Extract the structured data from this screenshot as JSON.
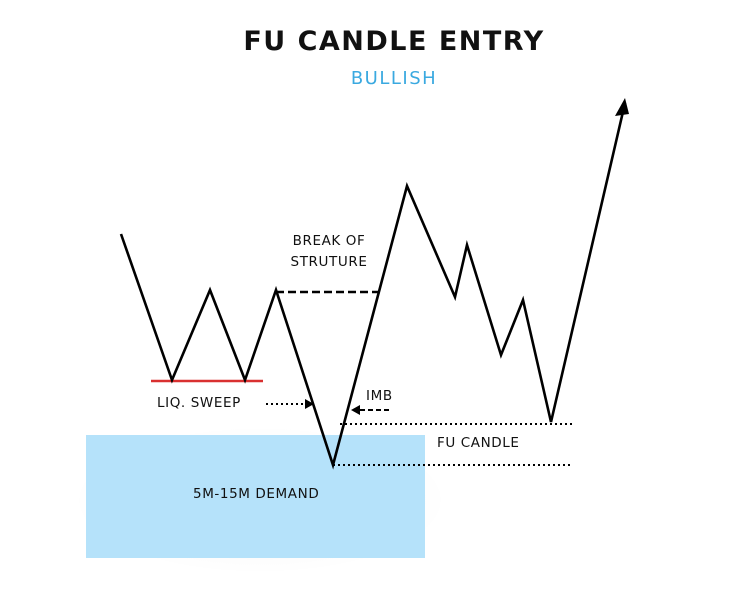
{
  "title": "FU CANDLE ENTRY",
  "subtitle": "BULLISH",
  "labels": {
    "break_of_structure_line1": "BREAK OF",
    "break_of_structure_line2": "STRUTURE",
    "liquidity_sweep": "LIQ. SWEEP",
    "imbalance": "IMB",
    "fu_candle": "FU CANDLE",
    "demand_zone": "5M-15M DEMAND"
  },
  "colors": {
    "title": "#111111",
    "subtitle": "#3aa9e0",
    "demand_zone": "#b5e2fa",
    "liquidity_line": "#d93030",
    "price_line": "#000000"
  },
  "icons": {
    "arrowhead": "arrow-up-right-icon"
  }
}
